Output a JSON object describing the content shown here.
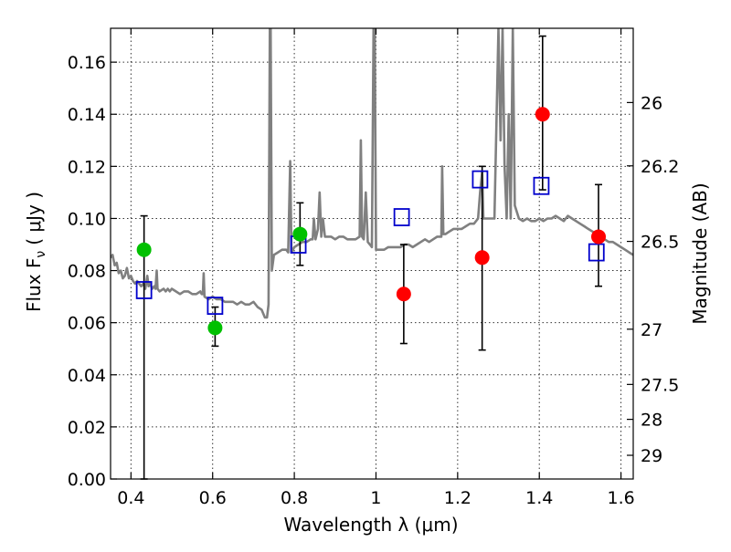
{
  "chart_data": {
    "type": "scatter",
    "xlabel": "Wavelength  λ (μm)",
    "ylabel_left": "Flux  F",
    "ylabel_left_sub": "ν",
    "ylabel_left_unit": "( μJy )",
    "ylabel_right": "Magnitude (AB)",
    "xlim": [
      0.35,
      1.63
    ],
    "ylim": [
      0.0,
      0.173
    ],
    "x_ticks": [
      0.4,
      0.6,
      0.8,
      1.0,
      1.2,
      1.4,
      1.6
    ],
    "x_tick_labels": [
      "0.4",
      "0.6",
      "0.8",
      "1",
      "1.2",
      "1.4",
      "1.6"
    ],
    "y_ticks": [
      0.0,
      0.02,
      0.04,
      0.06,
      0.08,
      0.1,
      0.12,
      0.14,
      0.16
    ],
    "y_tick_labels": [
      "0.00",
      "0.02",
      "0.04",
      "0.06",
      "0.08",
      "0.10",
      "0.12",
      "0.14",
      "0.16"
    ],
    "right_ticks": [
      {
        "flux": 0.1445,
        "label": "26"
      },
      {
        "flux": 0.1202,
        "label": "26.2"
      },
      {
        "flux": 0.0912,
        "label": "26.5"
      },
      {
        "flux": 0.0575,
        "label": "27"
      },
      {
        "flux": 0.0363,
        "label": "27.5"
      },
      {
        "flux": 0.0229,
        "label": "28"
      },
      {
        "flux": 0.0091,
        "label": "29"
      }
    ],
    "grid": true,
    "colors": {
      "spectrum": "#808080",
      "green_points": "#00c000",
      "red_points": "#ff0000",
      "model_squares": "#0000cc",
      "error_bars": "#000000"
    },
    "spectrum": [
      [
        0.35,
        0.085
      ],
      [
        0.355,
        0.086
      ],
      [
        0.36,
        0.082
      ],
      [
        0.365,
        0.083
      ],
      [
        0.37,
        0.079
      ],
      [
        0.375,
        0.08
      ],
      [
        0.38,
        0.077
      ],
      [
        0.385,
        0.078
      ],
      [
        0.39,
        0.081
      ],
      [
        0.395,
        0.077
      ],
      [
        0.4,
        0.078
      ],
      [
        0.405,
        0.076
      ],
      [
        0.41,
        0.075
      ],
      [
        0.415,
        0.076
      ],
      [
        0.42,
        0.075
      ],
      [
        0.425,
        0.074
      ],
      [
        0.43,
        0.075
      ],
      [
        0.435,
        0.073
      ],
      [
        0.44,
        0.078
      ],
      [
        0.443,
        0.074
      ],
      [
        0.447,
        0.075
      ],
      [
        0.452,
        0.073
      ],
      [
        0.457,
        0.074
      ],
      [
        0.46,
        0.073
      ],
      [
        0.463,
        0.08
      ],
      [
        0.465,
        0.073
      ],
      [
        0.47,
        0.072
      ],
      [
        0.48,
        0.073
      ],
      [
        0.485,
        0.072
      ],
      [
        0.49,
        0.073
      ],
      [
        0.495,
        0.072
      ],
      [
        0.5,
        0.073
      ],
      [
        0.51,
        0.072
      ],
      [
        0.52,
        0.071
      ],
      [
        0.53,
        0.072
      ],
      [
        0.54,
        0.072
      ],
      [
        0.55,
        0.071
      ],
      [
        0.56,
        0.071
      ],
      [
        0.57,
        0.072
      ],
      [
        0.573,
        0.071
      ],
      [
        0.576,
        0.071
      ],
      [
        0.578,
        0.079
      ],
      [
        0.58,
        0.07
      ],
      [
        0.59,
        0.069
      ],
      [
        0.6,
        0.07
      ],
      [
        0.61,
        0.069
      ],
      [
        0.62,
        0.069
      ],
      [
        0.63,
        0.068
      ],
      [
        0.64,
        0.068
      ],
      [
        0.65,
        0.068
      ],
      [
        0.66,
        0.067
      ],
      [
        0.67,
        0.068
      ],
      [
        0.68,
        0.067
      ],
      [
        0.69,
        0.067
      ],
      [
        0.7,
        0.068
      ],
      [
        0.71,
        0.066
      ],
      [
        0.72,
        0.065
      ],
      [
        0.728,
        0.062
      ],
      [
        0.733,
        0.062
      ],
      [
        0.737,
        0.067
      ],
      [
        0.74,
        0.173
      ],
      [
        0.742,
        0.173
      ],
      [
        0.745,
        0.08
      ],
      [
        0.75,
        0.086
      ],
      [
        0.76,
        0.087
      ],
      [
        0.77,
        0.088
      ],
      [
        0.78,
        0.088
      ],
      [
        0.785,
        0.087
      ],
      [
        0.79,
        0.122
      ],
      [
        0.793,
        0.087
      ],
      [
        0.8,
        0.089
      ],
      [
        0.81,
        0.09
      ],
      [
        0.82,
        0.091
      ],
      [
        0.83,
        0.091
      ],
      [
        0.84,
        0.092
      ],
      [
        0.845,
        0.092
      ],
      [
        0.848,
        0.1
      ],
      [
        0.852,
        0.092
      ],
      [
        0.858,
        0.096
      ],
      [
        0.862,
        0.11
      ],
      [
        0.866,
        0.093
      ],
      [
        0.87,
        0.1
      ],
      [
        0.875,
        0.093
      ],
      [
        0.88,
        0.093
      ],
      [
        0.89,
        0.093
      ],
      [
        0.9,
        0.092
      ],
      [
        0.91,
        0.093
      ],
      [
        0.92,
        0.093
      ],
      [
        0.93,
        0.092
      ],
      [
        0.94,
        0.092
      ],
      [
        0.95,
        0.092
      ],
      [
        0.96,
        0.093
      ],
      [
        0.963,
        0.13
      ],
      [
        0.966,
        0.093
      ],
      [
        0.97,
        0.092
      ],
      [
        0.975,
        0.11
      ],
      [
        0.98,
        0.091
      ],
      [
        0.985,
        0.09
      ],
      [
        0.99,
        0.089
      ],
      [
        0.994,
        0.173
      ],
      [
        0.997,
        0.173
      ],
      [
        1.0,
        0.088
      ],
      [
        1.005,
        0.088
      ],
      [
        1.01,
        0.088
      ],
      [
        1.02,
        0.088
      ],
      [
        1.03,
        0.089
      ],
      [
        1.04,
        0.089
      ],
      [
        1.05,
        0.089
      ],
      [
        1.06,
        0.089
      ],
      [
        1.07,
        0.09
      ],
      [
        1.08,
        0.09
      ],
      [
        1.09,
        0.089
      ],
      [
        1.1,
        0.09
      ],
      [
        1.11,
        0.091
      ],
      [
        1.12,
        0.092
      ],
      [
        1.13,
        0.091
      ],
      [
        1.14,
        0.092
      ],
      [
        1.15,
        0.093
      ],
      [
        1.16,
        0.093
      ],
      [
        1.162,
        0.12
      ],
      [
        1.165,
        0.094
      ],
      [
        1.17,
        0.094
      ],
      [
        1.18,
        0.095
      ],
      [
        1.19,
        0.096
      ],
      [
        1.2,
        0.096
      ],
      [
        1.21,
        0.096
      ],
      [
        1.22,
        0.097
      ],
      [
        1.23,
        0.098
      ],
      [
        1.24,
        0.098
      ],
      [
        1.25,
        0.1
      ],
      [
        1.255,
        0.11
      ],
      [
        1.26,
        0.118
      ],
      [
        1.263,
        0.1
      ],
      [
        1.27,
        0.1
      ],
      [
        1.28,
        0.1
      ],
      [
        1.29,
        0.1
      ],
      [
        1.3,
        0.173
      ],
      [
        1.305,
        0.13
      ],
      [
        1.31,
        0.173
      ],
      [
        1.315,
        0.12
      ],
      [
        1.32,
        0.1
      ],
      [
        1.325,
        0.14
      ],
      [
        1.33,
        0.1
      ],
      [
        1.335,
        0.173
      ],
      [
        1.34,
        0.105
      ],
      [
        1.35,
        0.1
      ],
      [
        1.36,
        0.099
      ],
      [
        1.37,
        0.1
      ],
      [
        1.38,
        0.099
      ],
      [
        1.39,
        0.099
      ],
      [
        1.4,
        0.1
      ],
      [
        1.41,
        0.099
      ],
      [
        1.42,
        0.1
      ],
      [
        1.43,
        0.1
      ],
      [
        1.44,
        0.101
      ],
      [
        1.45,
        0.1
      ],
      [
        1.46,
        0.099
      ],
      [
        1.47,
        0.101
      ],
      [
        1.48,
        0.1
      ],
      [
        1.49,
        0.099
      ],
      [
        1.5,
        0.098
      ],
      [
        1.51,
        0.097
      ],
      [
        1.52,
        0.096
      ],
      [
        1.53,
        0.095
      ],
      [
        1.54,
        0.094
      ],
      [
        1.55,
        0.093
      ],
      [
        1.56,
        0.092
      ],
      [
        1.57,
        0.091
      ],
      [
        1.58,
        0.091
      ],
      [
        1.59,
        0.09
      ],
      [
        1.6,
        0.089
      ],
      [
        1.61,
        0.088
      ],
      [
        1.62,
        0.087
      ],
      [
        1.63,
        0.086
      ]
    ],
    "green_points": [
      {
        "x": 0.432,
        "y": 0.088,
        "yerr_low": 0.0,
        "yerr_high": 0.101
      },
      {
        "x": 0.606,
        "y": 0.058,
        "yerr_low": 0.051,
        "yerr_high": 0.066
      },
      {
        "x": 0.814,
        "y": 0.094,
        "yerr_low": 0.082,
        "yerr_high": 0.106
      }
    ],
    "red_points": [
      {
        "x": 1.068,
        "y": 0.071,
        "yerr_low": 0.052,
        "yerr_high": 0.09
      },
      {
        "x": 1.26,
        "y": 0.085,
        "yerr_low": 0.0495,
        "yerr_high": 0.12
      },
      {
        "x": 1.408,
        "y": 0.14,
        "yerr_low": 0.111,
        "yerr_high": 0.17
      },
      {
        "x": 1.545,
        "y": 0.093,
        "yerr_low": 0.074,
        "yerr_high": 0.113
      }
    ],
    "model_squares": [
      {
        "x": 0.432,
        "y": 0.0725
      },
      {
        "x": 0.606,
        "y": 0.0665
      },
      {
        "x": 0.81,
        "y": 0.09
      },
      {
        "x": 1.063,
        "y": 0.1005
      },
      {
        "x": 1.255,
        "y": 0.115
      },
      {
        "x": 1.405,
        "y": 0.1125
      },
      {
        "x": 1.54,
        "y": 0.087
      }
    ]
  }
}
